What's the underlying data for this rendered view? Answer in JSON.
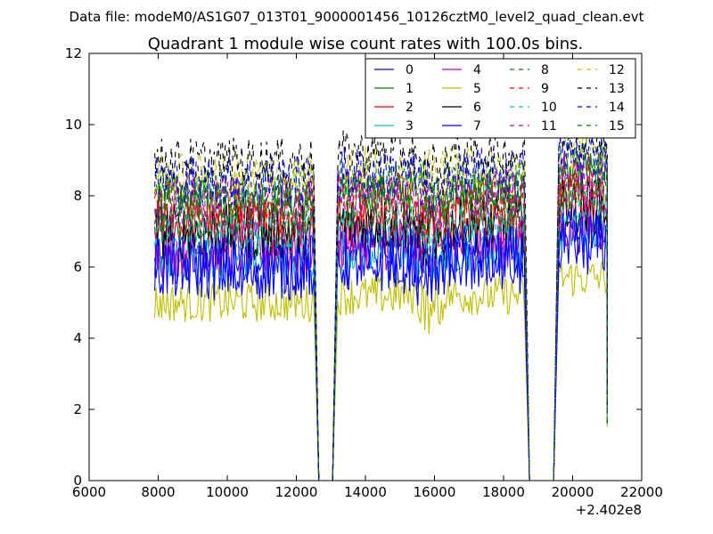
{
  "chart_data": {
    "type": "line",
    "suptitle": "Data file: modeM0/AS1G07_013T01_9000001456_10126cztM0_level2_quad_clean.evt",
    "title": "Quadrant 1 module wise count rates with 100.0s bins.",
    "xlabel": "",
    "ylabel": "",
    "offset_label": "+2.402e8",
    "xlim": [
      6000,
      22000
    ],
    "ylim": [
      0,
      12
    ],
    "xticks": [
      "6000",
      "8000",
      "10000",
      "12000",
      "14000",
      "16000",
      "18000",
      "20000",
      "22000"
    ],
    "yticks": [
      "0",
      "2",
      "4",
      "6",
      "8",
      "10",
      "12"
    ],
    "legend_position": "top-right",
    "segments": [
      [
        7900,
        12500
      ],
      [
        13200,
        18600
      ],
      [
        19600,
        21000
      ]
    ],
    "gap_zero_ranges": [
      [
        12650,
        13050
      ],
      [
        18750,
        19450
      ]
    ],
    "series": [
      {
        "name": "0",
        "color": "#0000ff",
        "style": "solid",
        "mean": 6.0,
        "amp": 0.5
      },
      {
        "name": "1",
        "color": "#008000",
        "style": "solid",
        "mean": 7.9,
        "amp": 0.4
      },
      {
        "name": "2",
        "color": "#ff0000",
        "style": "solid",
        "mean": 7.1,
        "amp": 0.5
      },
      {
        "name": "3",
        "color": "#00bfbf",
        "style": "solid",
        "mean": 6.3,
        "amp": 0.4
      },
      {
        "name": "4",
        "color": "#bf00bf",
        "style": "solid",
        "mean": 6.5,
        "amp": 0.5
      },
      {
        "name": "5",
        "color": "#bfbf00",
        "style": "solid",
        "mean": 5.0,
        "amp": 0.35
      },
      {
        "name": "6",
        "color": "#000000",
        "style": "solid",
        "mean": 7.0,
        "amp": 0.5
      },
      {
        "name": "7",
        "color": "#0000ff",
        "style": "solid",
        "mean": 6.0,
        "amp": 0.6
      },
      {
        "name": "8",
        "color": "#008000",
        "style": "dashed",
        "mean": 8.2,
        "amp": 0.4
      },
      {
        "name": "9",
        "color": "#ff0000",
        "style": "dashed",
        "mean": 7.7,
        "amp": 0.5
      },
      {
        "name": "10",
        "color": "#00bfbf",
        "style": "dashed",
        "mean": 7.0,
        "amp": 0.4
      },
      {
        "name": "11",
        "color": "#bf00bf",
        "style": "dashed",
        "mean": 7.8,
        "amp": 0.5
      },
      {
        "name": "12",
        "color": "#bfbf00",
        "style": "dashed",
        "mean": 8.6,
        "amp": 0.4
      },
      {
        "name": "13",
        "color": "#000000",
        "style": "dashed",
        "mean": 9.0,
        "amp": 0.4
      },
      {
        "name": "14",
        "color": "#0000ff",
        "style": "dashed",
        "mean": 8.4,
        "amp": 0.5
      },
      {
        "name": "15",
        "color": "#008000",
        "style": "dashed",
        "mean": 7.6,
        "amp": 0.5
      }
    ]
  }
}
